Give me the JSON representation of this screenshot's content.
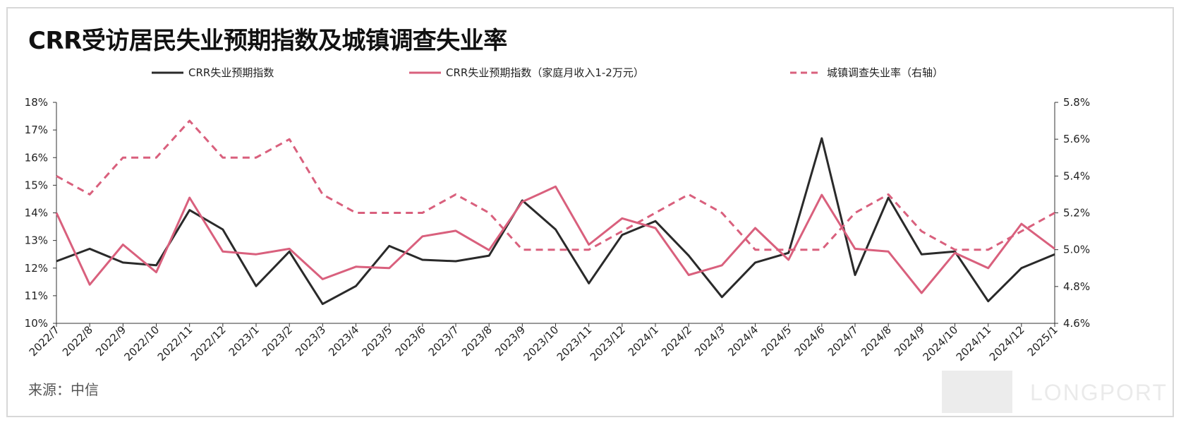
{
  "title": "CRR受访居民失业预期指数及城镇调查失业率",
  "source": "来源：中信",
  "watermark": "LONGPORT",
  "chart_data": {
    "type": "line",
    "title": "CRR受访居民失业预期指数及城镇调查失业率",
    "categories": [
      "2022/7",
      "2022/8",
      "2022/9",
      "2022/10",
      "2022/11",
      "2022/12",
      "2023/1",
      "2023/2",
      "2023/3",
      "2023/4",
      "2023/5",
      "2023/6",
      "2023/7",
      "2023/8",
      "2023/9",
      "2023/10",
      "2023/11",
      "2023/12",
      "2024/1",
      "2024/2",
      "2024/3",
      "2024/4",
      "2024/5",
      "2024/6",
      "2024/7",
      "2024/8",
      "2024/9",
      "2024/10",
      "2024/11",
      "2024/12",
      "2025/1"
    ],
    "y_left": {
      "min": 10,
      "max": 18,
      "step": 1,
      "unit": "%",
      "ticks": [
        "10%",
        "11%",
        "12%",
        "13%",
        "14%",
        "15%",
        "16%",
        "17%",
        "18%"
      ]
    },
    "y_right": {
      "min": 4.6,
      "max": 5.8,
      "step": 0.2,
      "unit": "%",
      "ticks": [
        "4.6%",
        "4.8%",
        "5.0%",
        "5.2%",
        "5.4%",
        "5.6%",
        "5.8%"
      ]
    },
    "legend_position": "top",
    "series": [
      {
        "name": "CRR失业预期指数",
        "axis": "left",
        "color": "#2a2a2a",
        "style": "solid",
        "values": [
          12.25,
          12.7,
          12.2,
          12.1,
          14.1,
          13.4,
          11.35,
          12.6,
          10.7,
          11.35,
          12.8,
          12.3,
          12.25,
          12.45,
          14.45,
          13.4,
          11.45,
          13.2,
          13.7,
          12.45,
          10.95,
          12.2,
          12.55,
          16.7,
          11.75,
          14.55,
          12.5,
          12.6,
          10.8,
          12.0,
          12.5
        ]
      },
      {
        "name": "CRR失业预期指数（家庭月收入1-2万元）",
        "axis": "left",
        "color": "#d9607d",
        "style": "solid",
        "values": [
          14.0,
          11.4,
          12.85,
          11.85,
          14.55,
          12.6,
          12.5,
          12.7,
          11.6,
          12.05,
          12.0,
          13.15,
          13.35,
          12.65,
          14.4,
          14.95,
          12.85,
          13.8,
          13.45,
          11.75,
          12.1,
          13.45,
          12.3,
          14.65,
          12.7,
          12.6,
          11.1,
          12.55,
          12.0,
          13.6,
          12.7
        ]
      },
      {
        "name": "城镇调查失业率（右轴）",
        "axis": "right",
        "color": "#d9607d",
        "style": "dashed",
        "values": [
          5.4,
          5.3,
          5.5,
          5.5,
          5.7,
          5.5,
          5.5,
          5.6,
          5.3,
          5.2,
          5.2,
          5.2,
          5.3,
          5.2,
          5.0,
          5.0,
          5.0,
          5.1,
          5.2,
          5.3,
          5.2,
          5.0,
          5.0,
          5.0,
          5.2,
          5.3,
          5.1,
          5.0,
          5.0,
          5.1,
          5.2
        ]
      }
    ]
  }
}
